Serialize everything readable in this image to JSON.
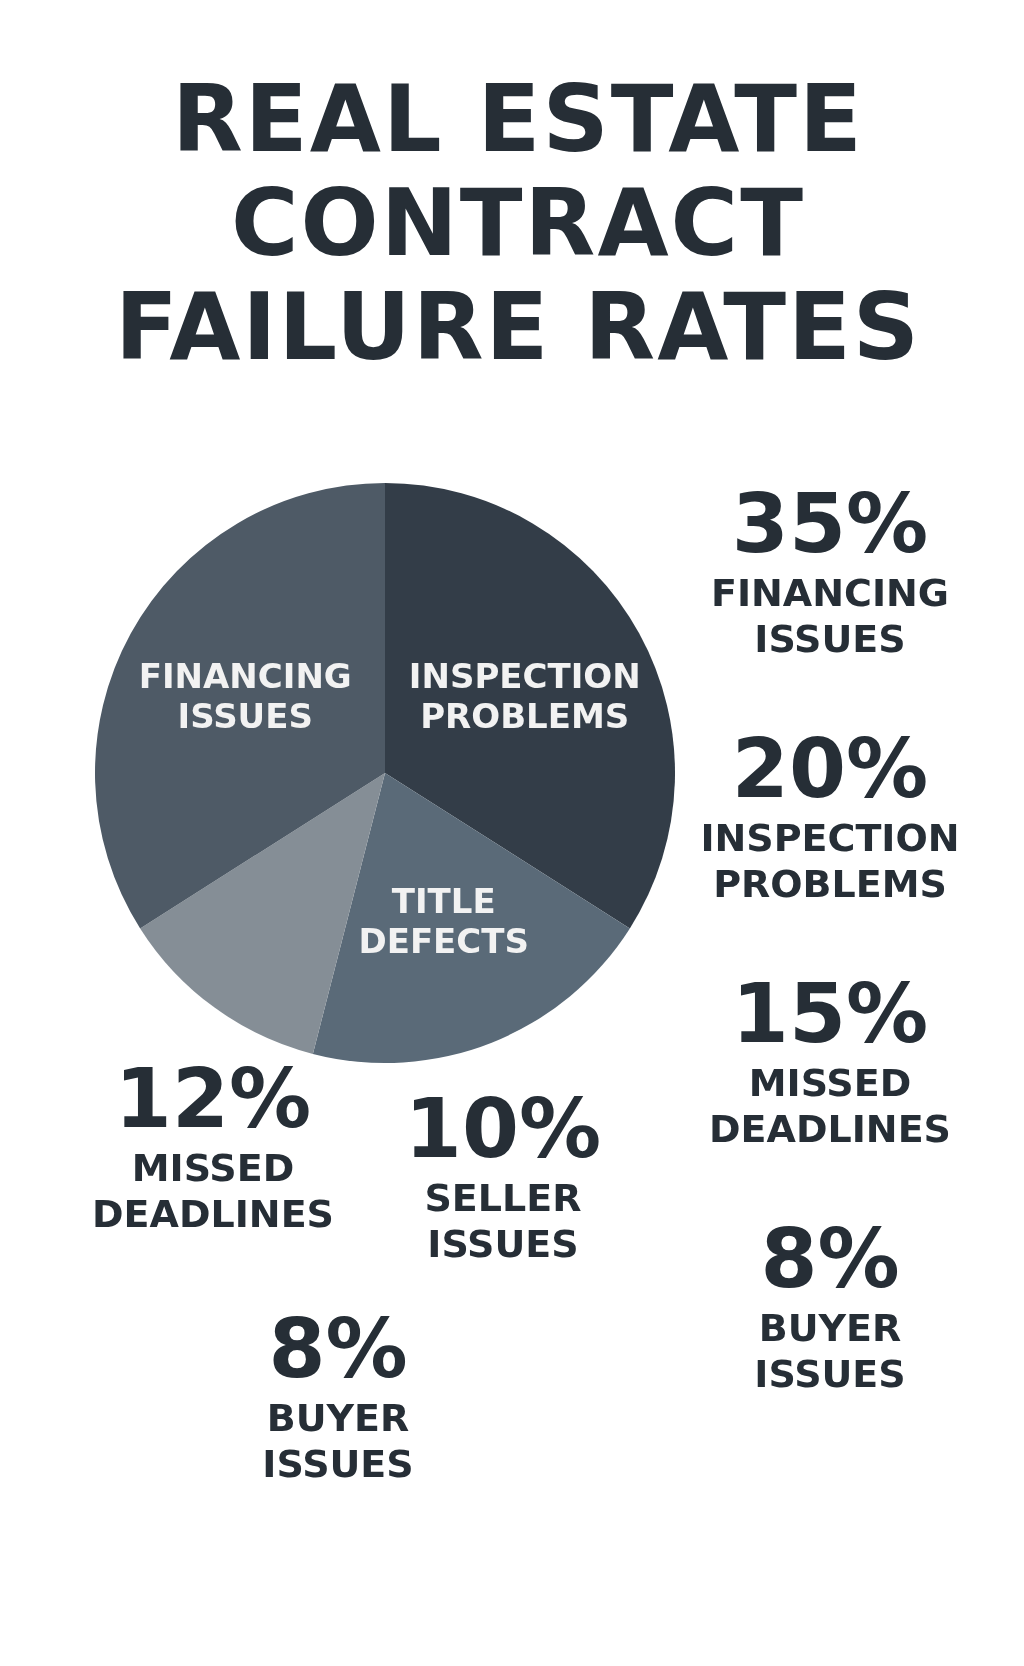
{
  "chart_data": {
    "type": "pie",
    "title": "REAL ESTATE CONTRACT FAILURE RATES",
    "categories": [
      "INSPECTION PROBLEMS",
      "TITLE DEFECTS",
      null,
      "FINANCING ISSUES"
    ],
    "values": [
      34,
      20,
      12,
      34
    ],
    "colors": [
      "#333d48",
      "#5a6a78",
      "#858e96",
      "#4e5a66"
    ],
    "legend": false,
    "annotations": [
      "35%",
      "FINANCING ISSUES",
      "20%",
      "INSPECTION PROBLEMS",
      "15%",
      "MISSED DEADLINES",
      "8%",
      "BUYER ISSUES",
      "12%",
      "MISSED DEADLINES",
      "10%",
      "SELLER ISSUES",
      "8%",
      "BUYER ISSUES"
    ]
  }
}
